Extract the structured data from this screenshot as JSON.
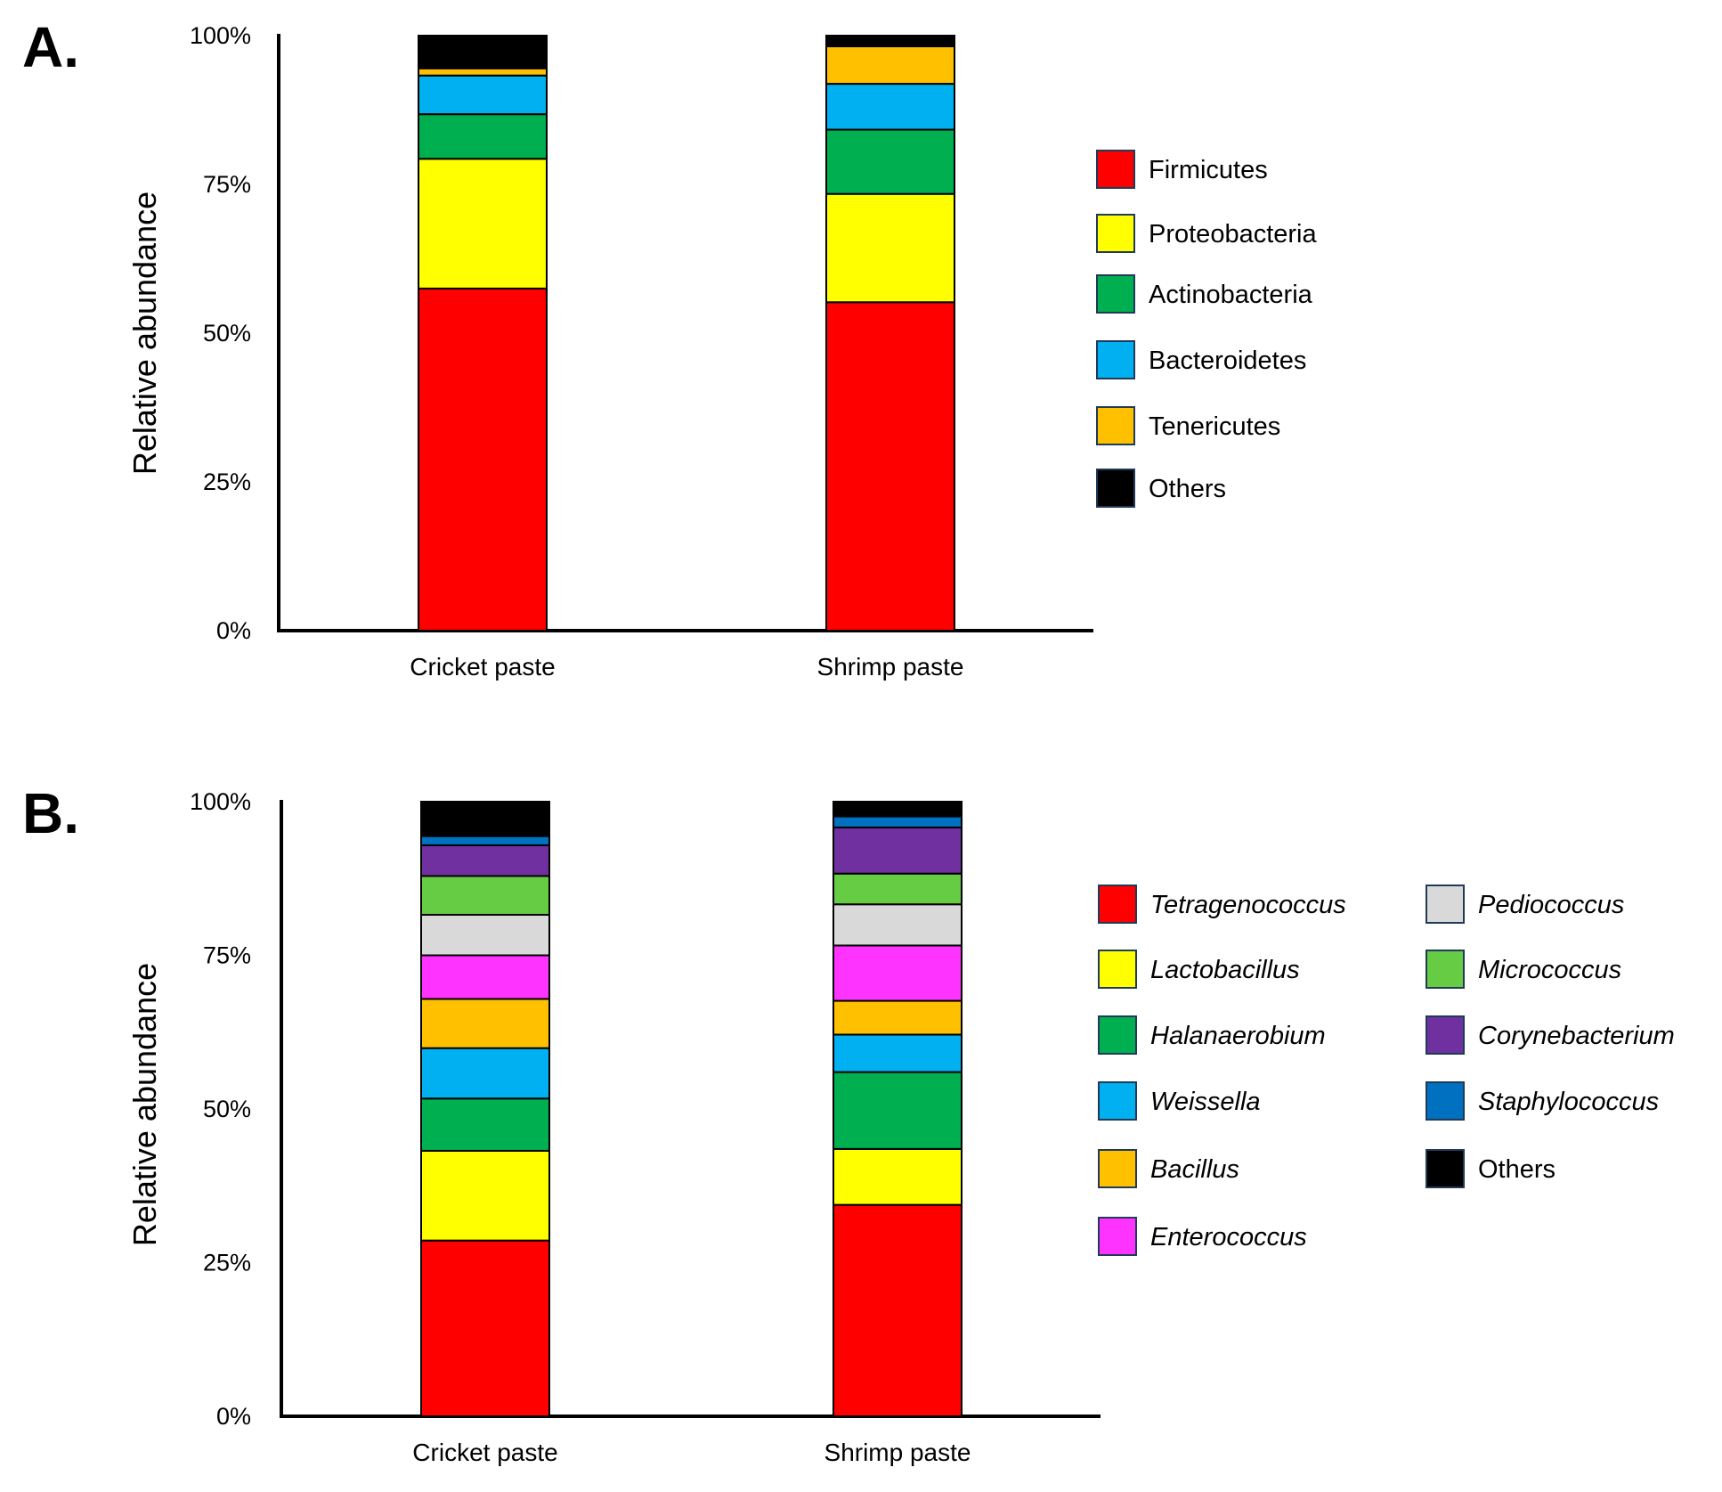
{
  "chart_data": [
    {
      "panel": "A.",
      "type": "bar",
      "stacked": true,
      "ylabel": "Relative abundance",
      "ylim": [
        0,
        100
      ],
      "yticks": [
        "0%",
        "25%",
        "50%",
        "75%",
        "100%"
      ],
      "categories": [
        "Cricket paste",
        "Shrimp paste"
      ],
      "series": [
        {
          "name": "Firmicutes",
          "color": "#ff0000",
          "italic": false,
          "values": [
            57.5,
            55.2
          ]
        },
        {
          "name": "Proteobacteria",
          "color": "#ffff00",
          "italic": false,
          "values": [
            21.8,
            18.2
          ]
        },
        {
          "name": "Actinobacteria",
          "color": "#00b050",
          "italic": false,
          "values": [
            7.5,
            10.8
          ]
        },
        {
          "name": "Bacteroidetes",
          "color": "#00b0f0",
          "italic": false,
          "values": [
            6.5,
            7.7
          ]
        },
        {
          "name": "Tenericutes",
          "color": "#ffc000",
          "italic": false,
          "values": [
            1.2,
            6.3
          ]
        },
        {
          "name": "Others",
          "color": "#000000",
          "italic": false,
          "values": [
            5.5,
            1.8
          ]
        }
      ],
      "legend_position": "right"
    },
    {
      "panel": "B.",
      "type": "bar",
      "stacked": true,
      "ylabel": "Relative abundance",
      "ylim": [
        0,
        100
      ],
      "yticks": [
        "0%",
        "25%",
        "50%",
        "75%",
        "100%"
      ],
      "categories": [
        "Cricket paste",
        "Shrimp paste"
      ],
      "series": [
        {
          "name": "Tetragenococcus",
          "color": "#ff0000",
          "italic": true,
          "values": [
            28.6,
            34.4
          ]
        },
        {
          "name": "Lactobacillus",
          "color": "#ffff00",
          "italic": true,
          "values": [
            14.6,
            9.1
          ]
        },
        {
          "name": "Halanaerobium",
          "color": "#00b050",
          "italic": true,
          "values": [
            8.5,
            12.5
          ]
        },
        {
          "name": "Weissella",
          "color": "#00b0f0",
          "italic": true,
          "values": [
            8.2,
            6.1
          ]
        },
        {
          "name": "Bacillus",
          "color": "#ffc000",
          "italic": true,
          "values": [
            8.0,
            5.5
          ]
        },
        {
          "name": "Enterococcus",
          "color": "#ff33ff",
          "italic": true,
          "values": [
            7.1,
            9.0
          ]
        },
        {
          "name": "Pediococcus",
          "color": "#d9d9d9",
          "italic": true,
          "values": [
            6.6,
            6.7
          ]
        },
        {
          "name": "Micrococcus",
          "color": "#66cc44",
          "italic": true,
          "values": [
            6.3,
            5.0
          ]
        },
        {
          "name": "Corynebacterium",
          "color": "#7030a0",
          "italic": true,
          "values": [
            5.0,
            7.5
          ]
        },
        {
          "name": "Staphylococcus",
          "color": "#0070c0",
          "italic": true,
          "values": [
            1.5,
            1.8
          ]
        },
        {
          "name": "Others",
          "color": "#000000",
          "italic": false,
          "values": [
            5.6,
            2.4
          ]
        }
      ],
      "legend_position": "right"
    }
  ]
}
